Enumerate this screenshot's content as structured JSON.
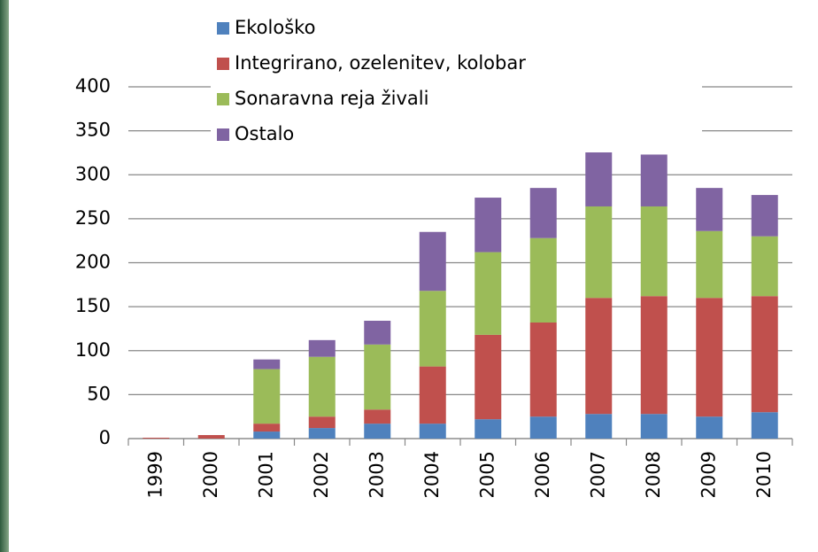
{
  "chart_data": {
    "type": "stacked_bar",
    "categories": [
      "1999",
      "2000",
      "2001",
      "2002",
      "2003",
      "2004",
      "2005",
      "2006",
      "2007",
      "2008",
      "2009",
      "2010"
    ],
    "series": [
      {
        "name": "Ekološko",
        "color": "#4f81bd",
        "values": [
          0,
          0,
          8,
          12,
          17,
          17,
          22,
          25,
          28,
          28,
          25,
          30
        ]
      },
      {
        "name": "Integrirano, ozelenitev, kolobar",
        "color": "#c0504d",
        "values": [
          1,
          4,
          9,
          13,
          16,
          65,
          96,
          107,
          132,
          134,
          135,
          132
        ]
      },
      {
        "name": "Sonaravna reja živali",
        "color": "#9bbb59",
        "values": [
          0,
          0,
          62,
          68,
          74,
          86,
          94,
          96,
          104,
          102,
          76,
          68
        ]
      },
      {
        "name": "Ostalo",
        "color": "#8064a2",
        "values": [
          0,
          0,
          11,
          19,
          27,
          67,
          62,
          57,
          62,
          59,
          49,
          47
        ]
      }
    ],
    "ylim": [
      0,
      400
    ],
    "yticks": [
      0,
      50,
      100,
      150,
      200,
      250,
      300,
      350,
      400
    ],
    "grid": true
  }
}
